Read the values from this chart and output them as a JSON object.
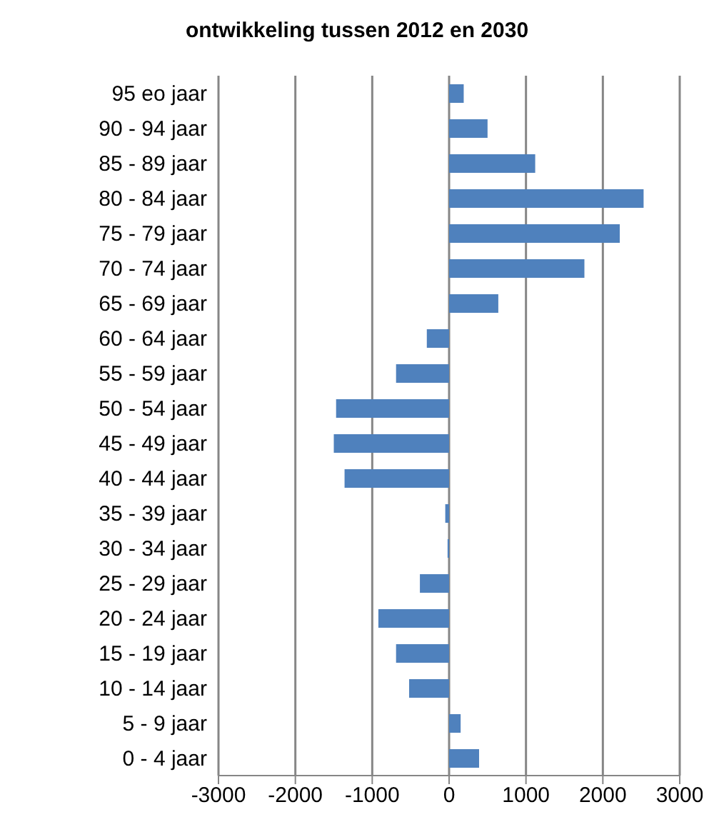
{
  "chart_data": {
    "type": "bar",
    "orientation": "horizontal",
    "title": "ontwikkeling tussen 2012 en 2030",
    "categories": [
      "95 eo jaar",
      "90 - 94 jaar",
      "85 - 89 jaar",
      "80 - 84 jaar",
      "75 - 79 jaar",
      "70 - 74 jaar",
      "65 - 69 jaar",
      "60 - 64 jaar",
      "55 - 59 jaar",
      "50 - 54 jaar",
      "45 - 49 jaar",
      "40 - 44 jaar",
      "35 - 39 jaar",
      "30 - 34 jaar",
      "25 - 29 jaar",
      "20 - 24 jaar",
      "15 - 19 jaar",
      "10 - 14 jaar",
      "5 - 9 jaar",
      "0 - 4 jaar"
    ],
    "values": [
      190,
      500,
      1120,
      2530,
      2220,
      1760,
      640,
      -290,
      -690,
      -1470,
      -1500,
      -1360,
      -50,
      -20,
      -380,
      -920,
      -690,
      -520,
      150,
      390
    ],
    "color": "#4f81bd",
    "xlim": [
      -3000,
      3000
    ],
    "xticks": [
      -3000,
      -2000,
      -1000,
      0,
      1000,
      2000,
      3000
    ],
    "grid": "x"
  }
}
